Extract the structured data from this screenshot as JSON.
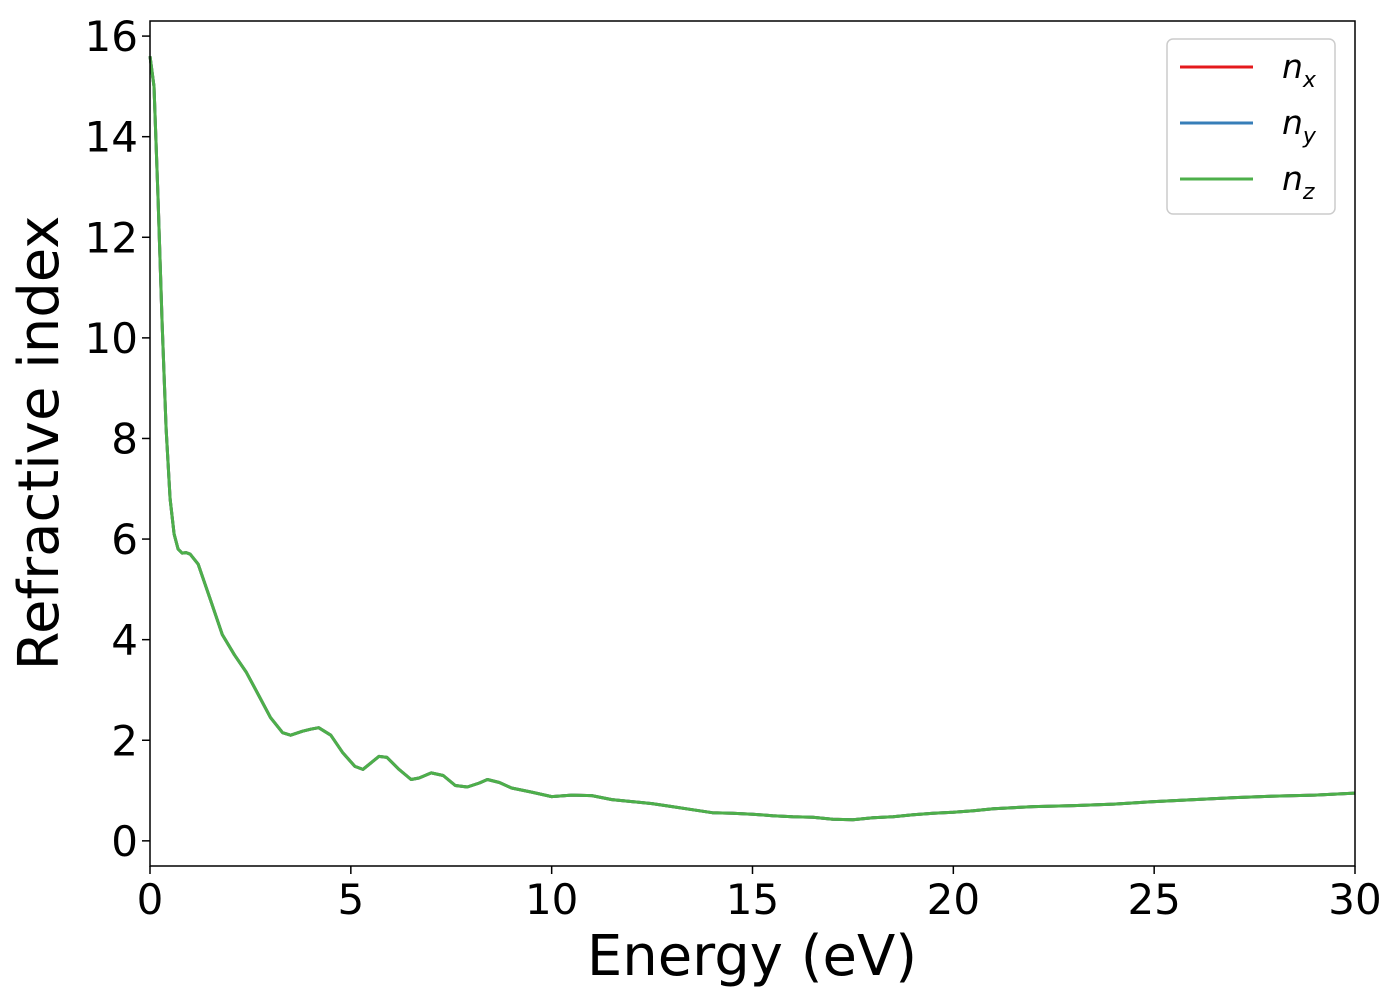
{
  "chart_data": {
    "type": "line",
    "xlabel": "Energy (eV)",
    "ylabel": "Refractive index",
    "xlim": [
      0,
      30
    ],
    "ylim": [
      -0.5,
      16.3
    ],
    "xticks": [
      0,
      5,
      10,
      15,
      20,
      25,
      30
    ],
    "yticks": [
      0,
      2,
      4,
      6,
      8,
      10,
      12,
      14,
      16
    ],
    "grid": false,
    "legend_position": "top-right",
    "x": [
      0,
      0.1,
      0.2,
      0.3,
      0.4,
      0.5,
      0.6,
      0.7,
      0.8,
      0.9,
      1.0,
      1.2,
      1.5,
      1.8,
      2.1,
      2.4,
      2.7,
      3.0,
      3.3,
      3.5,
      3.8,
      4.0,
      4.2,
      4.5,
      4.8,
      5.1,
      5.3,
      5.5,
      5.7,
      5.9,
      6.2,
      6.5,
      6.7,
      7.0,
      7.3,
      7.6,
      7.9,
      8.2,
      8.4,
      8.7,
      9.0,
      9.5,
      10.0,
      10.5,
      11.0,
      11.5,
      12.0,
      12.5,
      13.0,
      13.5,
      14.0,
      14.5,
      15.0,
      15.5,
      16.0,
      16.5,
      17.0,
      17.5,
      18.0,
      18.5,
      19.0,
      19.5,
      20.0,
      20.5,
      21.0,
      22.0,
      23.0,
      24.0,
      25.0,
      26.0,
      27.0,
      28.0,
      29.0,
      30.0
    ],
    "series": [
      {
        "name": "n_x",
        "label_main": "n",
        "label_sub": "x",
        "color": "#e41a1c",
        "values": [
          15.6,
          15.0,
          12.8,
          10.3,
          8.2,
          6.8,
          6.1,
          5.8,
          5.72,
          5.73,
          5.7,
          5.5,
          4.8,
          4.1,
          3.7,
          3.35,
          2.9,
          2.45,
          2.15,
          2.1,
          2.18,
          2.22,
          2.25,
          2.1,
          1.75,
          1.48,
          1.42,
          1.55,
          1.68,
          1.66,
          1.42,
          1.22,
          1.25,
          1.35,
          1.3,
          1.1,
          1.07,
          1.15,
          1.22,
          1.16,
          1.05,
          0.97,
          0.88,
          0.91,
          0.9,
          0.82,
          0.78,
          0.74,
          0.68,
          0.62,
          0.56,
          0.55,
          0.53,
          0.5,
          0.48,
          0.47,
          0.43,
          0.42,
          0.46,
          0.48,
          0.52,
          0.55,
          0.57,
          0.6,
          0.64,
          0.68,
          0.7,
          0.73,
          0.78,
          0.82,
          0.86,
          0.89,
          0.91,
          0.95
        ]
      },
      {
        "name": "n_y",
        "label_main": "n",
        "label_sub": "y",
        "color": "#377eb8",
        "values": [
          15.6,
          15.0,
          12.8,
          10.3,
          8.2,
          6.8,
          6.1,
          5.8,
          5.72,
          5.73,
          5.7,
          5.5,
          4.8,
          4.1,
          3.7,
          3.35,
          2.9,
          2.45,
          2.15,
          2.1,
          2.18,
          2.22,
          2.25,
          2.1,
          1.75,
          1.48,
          1.42,
          1.55,
          1.68,
          1.66,
          1.42,
          1.22,
          1.25,
          1.35,
          1.3,
          1.1,
          1.07,
          1.15,
          1.22,
          1.16,
          1.05,
          0.97,
          0.88,
          0.91,
          0.9,
          0.82,
          0.78,
          0.74,
          0.68,
          0.62,
          0.56,
          0.55,
          0.53,
          0.5,
          0.48,
          0.47,
          0.43,
          0.42,
          0.46,
          0.48,
          0.52,
          0.55,
          0.57,
          0.6,
          0.64,
          0.68,
          0.7,
          0.73,
          0.78,
          0.82,
          0.86,
          0.89,
          0.91,
          0.95
        ]
      },
      {
        "name": "n_z",
        "label_main": "n",
        "label_sub": "z",
        "color": "#4daf4a",
        "values": [
          15.6,
          15.0,
          12.8,
          10.3,
          8.2,
          6.8,
          6.1,
          5.8,
          5.72,
          5.73,
          5.7,
          5.5,
          4.8,
          4.1,
          3.7,
          3.35,
          2.9,
          2.45,
          2.15,
          2.1,
          2.18,
          2.22,
          2.25,
          2.1,
          1.75,
          1.48,
          1.42,
          1.55,
          1.68,
          1.66,
          1.42,
          1.22,
          1.25,
          1.35,
          1.3,
          1.1,
          1.07,
          1.15,
          1.22,
          1.16,
          1.05,
          0.97,
          0.88,
          0.91,
          0.9,
          0.82,
          0.78,
          0.74,
          0.68,
          0.62,
          0.56,
          0.55,
          0.53,
          0.5,
          0.48,
          0.47,
          0.43,
          0.42,
          0.46,
          0.48,
          0.52,
          0.55,
          0.57,
          0.6,
          0.64,
          0.68,
          0.7,
          0.73,
          0.78,
          0.82,
          0.86,
          0.89,
          0.91,
          0.95
        ]
      }
    ]
  }
}
